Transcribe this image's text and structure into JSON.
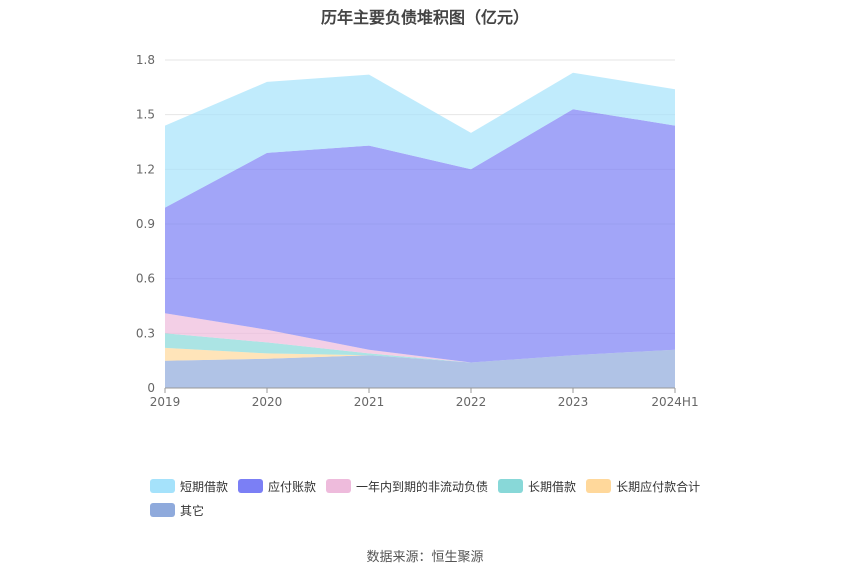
{
  "title": "历年主要负债堆积图（亿元）",
  "source": "数据来源：恒生聚源",
  "chart_data": {
    "type": "area",
    "stacked": true,
    "categories": [
      "2019",
      "2020",
      "2021",
      "2022",
      "2023",
      "2024H1"
    ],
    "ylim": [
      0,
      1.8
    ],
    "yticks": [
      "0",
      "0.3",
      "0.6",
      "0.9",
      "1.2",
      "1.5",
      "1.8"
    ],
    "grid": true,
    "legend_position": "bottom",
    "series": [
      {
        "name": "其它",
        "color": "#8faadc",
        "values": [
          0.15,
          0.16,
          0.18,
          0.14,
          0.18,
          0.21
        ]
      },
      {
        "name": "长期应付款合计",
        "color": "#ffd89b",
        "values": [
          0.07,
          0.03,
          0.0,
          0.0,
          0.0,
          0.0
        ]
      },
      {
        "name": "长期借款",
        "color": "#88d8d8",
        "values": [
          0.08,
          0.06,
          0.01,
          0.0,
          0.0,
          0.0
        ]
      },
      {
        "name": "一年内到期的非流动负债",
        "color": "#eebbdc",
        "values": [
          0.11,
          0.07,
          0.02,
          0.0,
          0.0,
          0.0
        ]
      },
      {
        "name": "应付账款",
        "color": "#7b7ff5",
        "values": [
          0.58,
          0.97,
          1.12,
          1.06,
          1.35,
          1.23
        ]
      },
      {
        "name": "短期借款",
        "color": "#a5e2fb",
        "values": [
          0.45,
          0.39,
          0.39,
          0.2,
          0.2,
          0.2
        ]
      }
    ]
  },
  "legend": [
    {
      "label": "短期借款",
      "color": "#a5e2fb"
    },
    {
      "label": "应付账款",
      "color": "#7b7ff5"
    },
    {
      "label": "一年内到期的非流动负债",
      "color": "#eebbdc"
    },
    {
      "label": "长期借款",
      "color": "#88d8d8"
    },
    {
      "label": "长期应付款合计",
      "color": "#ffd89b"
    },
    {
      "label": "其它",
      "color": "#8faadc"
    }
  ]
}
